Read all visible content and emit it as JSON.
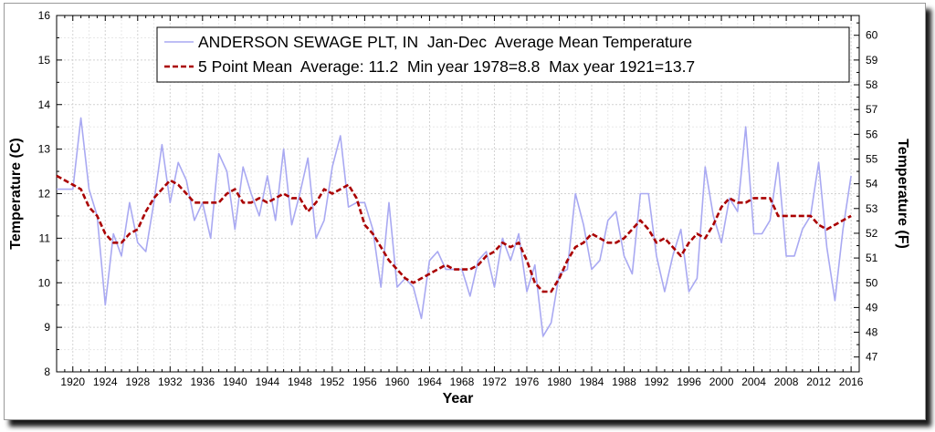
{
  "chart_data": {
    "type": "line",
    "xlabel": "Year",
    "ylabel_left": "Temperature (C)",
    "ylabel_right": "Temperature (F)",
    "xlim": [
      1918,
      2017
    ],
    "ylim_left": [
      8,
      16
    ],
    "ylim_right": [
      46.4,
      60.8
    ],
    "x_ticks": [
      "1920",
      "1924",
      "1928",
      "1932",
      "1936",
      "1940",
      "1944",
      "1948",
      "1952",
      "1956",
      "1960",
      "1964",
      "1968",
      "1972",
      "1976",
      "1980",
      "1984",
      "1988",
      "1992",
      "1996",
      "2000",
      "2004",
      "2008",
      "2012",
      "2016"
    ],
    "y_ticks_left": [
      "8",
      "9",
      "10",
      "11",
      "12",
      "13",
      "14",
      "15",
      "16"
    ],
    "y_ticks_right": [
      "47",
      "48",
      "49",
      "50",
      "51",
      "52",
      "53",
      "54",
      "55",
      "56",
      "57",
      "58",
      "59",
      "60"
    ],
    "grid": true,
    "legend_position": "top-right",
    "series": [
      {
        "name": "ANDERSON SEWAGE PLT, IN  Jan-Dec  Average Mean Temperature",
        "color": "#a9a9f2",
        "style": "solid",
        "x": [
          1918,
          1919,
          1920,
          1921,
          1922,
          1923,
          1924,
          1925,
          1926,
          1927,
          1928,
          1929,
          1930,
          1931,
          1932,
          1933,
          1934,
          1935,
          1936,
          1937,
          1938,
          1939,
          1940,
          1941,
          1942,
          1943,
          1944,
          1945,
          1946,
          1947,
          1948,
          1949,
          1950,
          1951,
          1952,
          1953,
          1954,
          1955,
          1956,
          1957,
          1958,
          1959,
          1960,
          1961,
          1962,
          1963,
          1964,
          1965,
          1966,
          1967,
          1968,
          1969,
          1970,
          1971,
          1972,
          1973,
          1974,
          1975,
          1976,
          1977,
          1978,
          1979,
          1980,
          1981,
          1982,
          1983,
          1984,
          1985,
          1986,
          1987,
          1988,
          1989,
          1990,
          1991,
          1992,
          1993,
          1994,
          1995,
          1996,
          1997,
          1998,
          1999,
          2000,
          2001,
          2002,
          2003,
          2004,
          2005,
          2006,
          2007,
          2008,
          2009,
          2010,
          2011,
          2012,
          2013,
          2014,
          2015,
          2016
        ],
        "values": [
          12.1,
          12.1,
          12.1,
          13.7,
          12.1,
          11.5,
          9.5,
          11.1,
          10.6,
          11.8,
          10.9,
          10.7,
          11.8,
          13.1,
          11.8,
          12.7,
          12.3,
          11.4,
          11.8,
          11.0,
          12.9,
          12.5,
          11.2,
          12.6,
          12.0,
          11.5,
          12.4,
          11.4,
          13.0,
          11.3,
          12.0,
          12.8,
          11.0,
          11.4,
          12.6,
          13.3,
          11.7,
          11.8,
          11.8,
          11.2,
          9.9,
          11.8,
          9.9,
          10.1,
          9.9,
          9.2,
          10.5,
          10.7,
          10.3,
          10.3,
          10.3,
          9.7,
          10.5,
          10.7,
          9.9,
          11.0,
          10.5,
          11.1,
          9.8,
          10.4,
          8.8,
          9.1,
          10.2,
          10.3,
          12.0,
          11.3,
          10.3,
          10.5,
          11.4,
          11.6,
          10.6,
          10.2,
          12.0,
          12.0,
          10.6,
          9.8,
          10.6,
          11.2,
          9.8,
          10.1,
          12.6,
          11.5,
          10.9,
          11.9,
          11.6,
          13.5,
          11.1,
          11.1,
          11.4,
          12.7,
          10.6,
          10.6,
          11.2,
          11.5,
          12.7,
          10.8,
          9.6,
          11.2,
          12.4
        ]
      },
      {
        "name": "5 Point Mean  Average: 11.2  Min year 1978=8.8  Max year 1921=13.7",
        "color": "#aa0000",
        "style": "dashed",
        "x": [
          1918,
          1919,
          1920,
          1921,
          1922,
          1923,
          1924,
          1925,
          1926,
          1927,
          1928,
          1929,
          1930,
          1931,
          1932,
          1933,
          1934,
          1935,
          1936,
          1937,
          1938,
          1939,
          1940,
          1941,
          1942,
          1943,
          1944,
          1945,
          1946,
          1947,
          1948,
          1949,
          1950,
          1951,
          1952,
          1953,
          1954,
          1955,
          1956,
          1957,
          1958,
          1959,
          1960,
          1961,
          1962,
          1963,
          1964,
          1965,
          1966,
          1967,
          1968,
          1969,
          1970,
          1971,
          1972,
          1973,
          1974,
          1975,
          1976,
          1977,
          1978,
          1979,
          1980,
          1981,
          1982,
          1983,
          1984,
          1985,
          1986,
          1987,
          1988,
          1989,
          1990,
          1991,
          1992,
          1993,
          1994,
          1995,
          1996,
          1997,
          1998,
          1999,
          2000,
          2001,
          2002,
          2003,
          2004,
          2005,
          2006,
          2007,
          2008,
          2009,
          2010,
          2011,
          2012,
          2013,
          2014,
          2015,
          2016
        ],
        "values": [
          12.4,
          12.3,
          12.2,
          12.1,
          11.7,
          11.5,
          11.1,
          10.9,
          10.9,
          11.1,
          11.2,
          11.6,
          11.9,
          12.1,
          12.3,
          12.2,
          12.0,
          11.8,
          11.8,
          11.8,
          11.8,
          12.0,
          12.1,
          11.8,
          11.8,
          11.9,
          11.8,
          11.9,
          12.0,
          11.9,
          11.9,
          11.6,
          11.8,
          12.1,
          12.0,
          12.1,
          12.2,
          11.9,
          11.3,
          11.1,
          10.8,
          10.5,
          10.3,
          10.1,
          10.0,
          10.1,
          10.2,
          10.3,
          10.4,
          10.3,
          10.3,
          10.3,
          10.4,
          10.6,
          10.7,
          10.9,
          10.8,
          10.9,
          10.5,
          10.0,
          9.8,
          9.8,
          10.1,
          10.5,
          10.8,
          10.9,
          11.1,
          11.0,
          10.9,
          10.9,
          11.0,
          11.2,
          11.4,
          11.2,
          10.9,
          11.0,
          10.8,
          10.6,
          10.9,
          11.1,
          11.0,
          11.3,
          11.7,
          11.9,
          11.8,
          11.8,
          11.9,
          11.9,
          11.9,
          11.5,
          11.5,
          11.5,
          11.5,
          11.5,
          11.3,
          11.2,
          11.3,
          11.4,
          11.5
        ]
      }
    ]
  }
}
